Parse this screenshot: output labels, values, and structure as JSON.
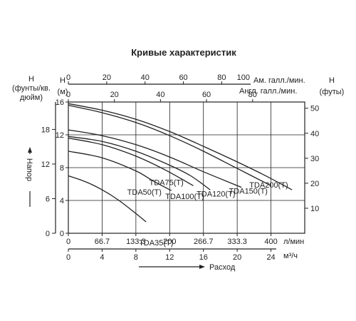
{
  "chart_data": {
    "type": "line",
    "title": "Кривые характеристик",
    "axes": {
      "left_outer": {
        "label_lines": [
          "H",
          "(фунты/кв.",
          "дюйм)"
        ],
        "ticks": [
          "18",
          "12",
          "6",
          "0"
        ]
      },
      "left_inner": {
        "label_lines": [
          "H",
          "(м)"
        ],
        "ticks": [
          "16",
          "12",
          "8",
          "4",
          "0"
        ],
        "title": "Напор",
        "ylim": [
          0,
          16
        ]
      },
      "right": {
        "label_lines": [
          "H",
          "(футы)"
        ],
        "ticks": [
          "50",
          "40",
          "30",
          "20",
          "10"
        ]
      },
      "top_am": {
        "label": "Ам. галл./мин.",
        "ticks": [
          "0",
          "20",
          "40",
          "60",
          "80",
          "100"
        ]
      },
      "top_uk": {
        "label": "Англ. галл./мин.",
        "ticks": [
          "0",
          "20",
          "40",
          "60",
          "80"
        ]
      },
      "bottom_lpm": {
        "label": "л/мин",
        "ticks": [
          "0",
          "66.7",
          "133.3",
          "200",
          "266.7",
          "333.3",
          "400"
        ]
      },
      "bottom_m3h": {
        "label": "м³/ч",
        "ticks": [
          "0",
          "4",
          "8",
          "12",
          "16",
          "20",
          "24"
        ],
        "xlim": [
          0,
          28
        ]
      },
      "xtitle": "Расход"
    },
    "series": [
      {
        "name": "TDA200(T)",
        "x": [
          0,
          4,
          8,
          12,
          16,
          20,
          23,
          26.5
        ],
        "y": [
          15.8,
          15.0,
          13.9,
          12.4,
          10.6,
          8.7,
          7.2,
          5.3
        ]
      },
      {
        "name": "TDA150(T)",
        "x": [
          0,
          4,
          8,
          12,
          16,
          20,
          24
        ],
        "y": [
          15.6,
          14.7,
          13.5,
          11.9,
          10.0,
          7.9,
          5.8
        ]
      },
      {
        "name": "TDA120(T)",
        "x": [
          0,
          4,
          8,
          12,
          16,
          20.5
        ],
        "y": [
          12.6,
          11.9,
          10.8,
          9.3,
          7.5,
          5.6
        ]
      },
      {
        "name": "TDA100(T)",
        "x": [
          0,
          4,
          8,
          12,
          14.5,
          16.8
        ],
        "y": [
          11.8,
          11.2,
          10.0,
          8.3,
          7.0,
          5.3
        ]
      },
      {
        "name": "TDA75(T)",
        "x": [
          0,
          4,
          8,
          11.5,
          14.8
        ],
        "y": [
          11.6,
          10.8,
          9.4,
          7.7,
          5.8
        ]
      },
      {
        "name": "TDA50(T)",
        "x": [
          0,
          4,
          8,
          10,
          12.2
        ],
        "y": [
          10.0,
          9.2,
          7.6,
          6.4,
          5.2
        ]
      },
      {
        "name": "TDA35(T)",
        "x": [
          0,
          2,
          4,
          6,
          8,
          9.2
        ],
        "y": [
          7.0,
          6.3,
          5.3,
          4.0,
          2.4,
          1.4
        ]
      }
    ]
  }
}
